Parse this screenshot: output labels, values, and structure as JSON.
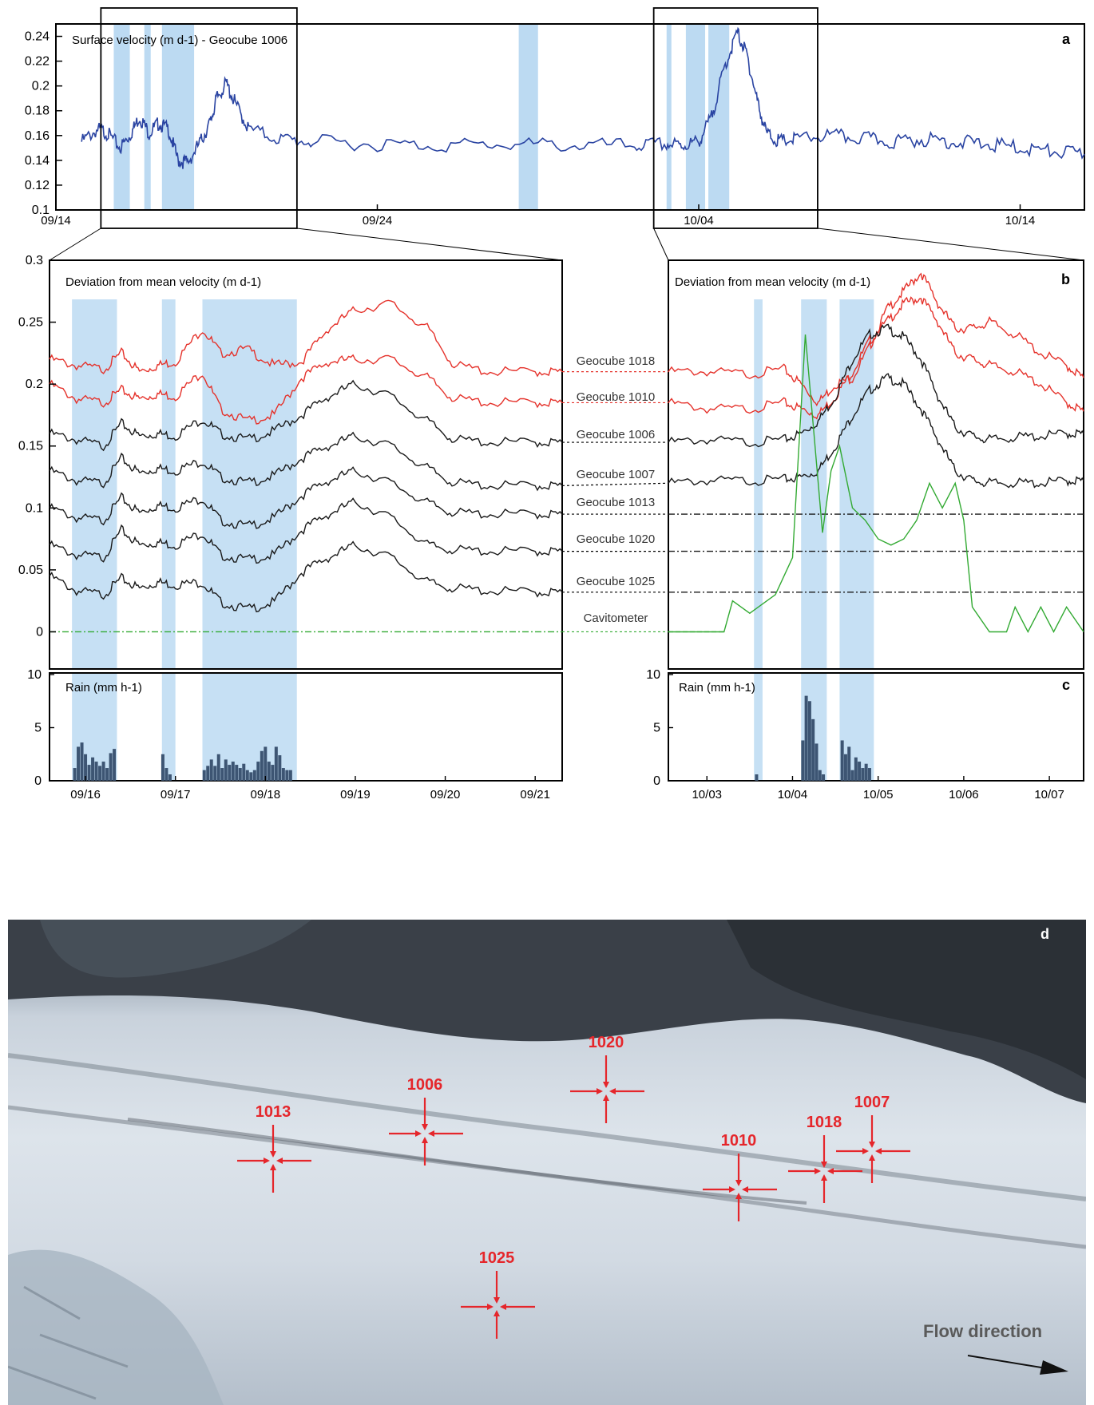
{
  "panel_letters": {
    "a": "a",
    "b": "b",
    "c": "c",
    "d": "d"
  },
  "chart_data": [
    {
      "panel": "a",
      "type": "line",
      "title": "Surface velocity (m d-1) - Geocube 1006",
      "ylim": [
        0.1,
        0.25
      ],
      "yticks": [
        0.1,
        0.12,
        0.14,
        0.16,
        0.18,
        0.2,
        0.22,
        0.24
      ],
      "xlim_day": [
        0,
        32
      ],
      "xticks": [
        {
          "day": 0,
          "label": "09/14"
        },
        {
          "day": 10,
          "label": "09/24"
        },
        {
          "day": 20,
          "label": "10/04"
        },
        {
          "day": 30,
          "label": "10/14"
        }
      ],
      "color": "#2a44a2",
      "shaded_day_ranges": [
        [
          1.8,
          2.3
        ],
        [
          2.75,
          2.95
        ],
        [
          3.3,
          4.3
        ],
        [
          14.4,
          15.0
        ],
        [
          19.0,
          19.15
        ],
        [
          19.6,
          20.2
        ],
        [
          20.3,
          20.95
        ]
      ],
      "zoom_day_ranges": [
        [
          1.4,
          7.5
        ],
        [
          18.6,
          23.7
        ]
      ],
      "series": [
        {
          "x": [
            0.8,
            1.3,
            1.6,
            2.0,
            2.3,
            2.6,
            2.9,
            3.2,
            3.5,
            3.8,
            4.1,
            4.5,
            4.8,
            5.0,
            5.3,
            5.6,
            6.0,
            7.0,
            8.0,
            10.0,
            12.0,
            14.0,
            16.0,
            18.0,
            19.0,
            19.5,
            20.0,
            20.4,
            20.8,
            21.2,
            21.5,
            21.8,
            22.1,
            22.5,
            23.0,
            24.0,
            25.0,
            26.0,
            27.0,
            28.0,
            29.0,
            30.0,
            31.0,
            32.0
          ],
          "y": [
            0.155,
            0.165,
            0.162,
            0.15,
            0.16,
            0.175,
            0.162,
            0.17,
            0.165,
            0.14,
            0.138,
            0.155,
            0.17,
            0.19,
            0.202,
            0.185,
            0.165,
            0.157,
            0.155,
            0.153,
            0.152,
            0.153,
            0.152,
            0.152,
            0.153,
            0.152,
            0.155,
            0.175,
            0.215,
            0.243,
            0.225,
            0.19,
            0.162,
            0.155,
            0.157,
            0.16,
            0.158,
            0.155,
            0.157,
            0.155,
            0.153,
            0.15,
            0.147,
            0.145
          ]
        }
      ]
    },
    {
      "panel": "b-left",
      "type": "line",
      "title": "Deviation from mean velocity (m d-1)",
      "ylim": [
        -0.03,
        0.3
      ],
      "yticks": [
        0,
        0.05,
        0.1,
        0.15,
        0.2,
        0.25,
        0.3
      ],
      "xlim_day": [
        15.6,
        21.3
      ],
      "shaded_day_ranges": [
        [
          15.85,
          16.35
        ],
        [
          16.85,
          17.0
        ],
        [
          17.3,
          18.35
        ]
      ],
      "x": [
        15.6,
        15.9,
        16.2,
        16.4,
        16.6,
        16.8,
        17.0,
        17.3,
        17.5,
        17.8,
        18.1,
        18.4,
        18.7,
        19.0,
        19.4,
        19.8,
        20.1,
        20.5,
        21.0,
        21.3
      ],
      "series": [
        {
          "name": "Geocube 1018",
          "color": "#e5322b",
          "values": [
            0.22,
            0.215,
            0.212,
            0.225,
            0.21,
            0.215,
            0.218,
            0.245,
            0.225,
            0.228,
            0.215,
            0.218,
            0.245,
            0.26,
            0.265,
            0.245,
            0.215,
            0.21,
            0.21,
            0.21
          ]
        },
        {
          "name": "Geocube 1010",
          "color": "#e5322b",
          "values": [
            0.2,
            0.188,
            0.185,
            0.195,
            0.188,
            0.192,
            0.19,
            0.21,
            0.18,
            0.17,
            0.175,
            0.205,
            0.218,
            0.22,
            0.22,
            0.205,
            0.188,
            0.185,
            0.185,
            0.185
          ]
        },
        {
          "name": "Geocube 1006",
          "color": "#1a1a1a",
          "values": [
            0.16,
            0.155,
            0.15,
            0.168,
            0.158,
            0.16,
            0.158,
            0.172,
            0.16,
            0.155,
            0.162,
            0.175,
            0.19,
            0.2,
            0.19,
            0.17,
            0.155,
            0.153,
            0.153,
            0.153
          ]
        },
        {
          "name": "Geocube 1007",
          "color": "#1a1a1a",
          "values": [
            0.13,
            0.122,
            0.12,
            0.14,
            0.128,
            0.132,
            0.13,
            0.138,
            0.125,
            0.12,
            0.126,
            0.14,
            0.15,
            0.158,
            0.15,
            0.132,
            0.12,
            0.118,
            0.118,
            0.118
          ]
        },
        {
          "name": "Geocube 1013",
          "color": "#1a1a1a",
          "values": [
            0.1,
            0.092,
            0.09,
            0.108,
            0.096,
            0.102,
            0.1,
            0.108,
            0.09,
            0.085,
            0.092,
            0.11,
            0.122,
            0.13,
            0.12,
            0.104,
            0.096,
            0.095,
            0.095,
            0.095
          ]
        },
        {
          "name": "Geocube 1020",
          "color": "#1a1a1a",
          "values": [
            0.07,
            0.062,
            0.06,
            0.082,
            0.07,
            0.072,
            0.07,
            0.08,
            0.062,
            0.058,
            0.062,
            0.082,
            0.095,
            0.105,
            0.092,
            0.07,
            0.066,
            0.065,
            0.065,
            0.065
          ]
        },
        {
          "name": "Geocube 1025",
          "color": "#1a1a1a",
          "values": [
            0.045,
            0.033,
            0.03,
            0.043,
            0.035,
            0.04,
            0.038,
            0.04,
            0.024,
            0.018,
            0.024,
            0.048,
            0.06,
            0.07,
            0.06,
            0.04,
            0.035,
            0.033,
            0.032,
            0.032
          ]
        },
        {
          "name": "Cavitometer",
          "color": "#33aa33",
          "dashed": true,
          "values": [
            0,
            0,
            0,
            0,
            0,
            0,
            0,
            0,
            0,
            0,
            0,
            0,
            0,
            0,
            0,
            0,
            0,
            0,
            0,
            0
          ]
        }
      ]
    },
    {
      "panel": "b-right",
      "type": "line",
      "ylim": [
        -0.03,
        0.3
      ],
      "xlim_day": [
        32.55,
        37.4
      ],
      "shaded_day_ranges": [
        [
          33.55,
          33.65
        ],
        [
          34.1,
          34.4
        ],
        [
          34.55,
          34.95
        ]
      ],
      "x": [
        32.55,
        33.0,
        33.5,
        33.9,
        34.1,
        34.3,
        34.5,
        34.7,
        34.9,
        35.1,
        35.3,
        35.5,
        35.7,
        35.9,
        36.1,
        36.3,
        36.6,
        36.9,
        37.2,
        37.4
      ],
      "series": [
        {
          "name": "Geocube 1018",
          "color": "#e5322b",
          "values": [
            0.21,
            0.21,
            0.208,
            0.212,
            0.2,
            0.185,
            0.2,
            0.205,
            0.23,
            0.26,
            0.275,
            0.29,
            0.265,
            0.245,
            0.245,
            0.25,
            0.24,
            0.225,
            0.215,
            0.205
          ]
        },
        {
          "name": "Geocube 1010",
          "color": "#e5322b",
          "values": [
            0.185,
            0.18,
            0.18,
            0.185,
            0.18,
            0.175,
            0.19,
            0.21,
            0.235,
            0.25,
            0.265,
            0.27,
            0.25,
            0.225,
            0.22,
            0.215,
            0.21,
            0.2,
            0.185,
            0.178
          ]
        },
        {
          "name": "Geocube 1006",
          "color": "#1a1a1a",
          "values": [
            0.153,
            0.155,
            0.153,
            0.155,
            0.16,
            0.17,
            0.19,
            0.22,
            0.24,
            0.245,
            0.238,
            0.22,
            0.19,
            0.165,
            0.158,
            0.155,
            0.157,
            0.158,
            0.16,
            0.16
          ]
        },
        {
          "name": "Geocube 1007",
          "color": "#1a1a1a",
          "values": [
            0.12,
            0.122,
            0.122,
            0.123,
            0.125,
            0.13,
            0.15,
            0.175,
            0.195,
            0.205,
            0.2,
            0.18,
            0.155,
            0.13,
            0.122,
            0.12,
            0.12,
            0.12,
            0.122,
            0.122
          ]
        },
        {
          "name": "Geocube 1013",
          "color": "#1a1a1a",
          "dashed": true,
          "values": [
            0.095,
            0.095,
            0.095,
            0.095,
            0.095,
            0.095,
            0.095,
            0.095,
            0.095,
            0.095,
            0.095,
            0.095,
            0.095,
            0.095,
            0.095,
            0.095,
            0.095,
            0.095,
            0.095,
            0.095
          ]
        },
        {
          "name": "Geocube 1020",
          "color": "#1a1a1a",
          "dashed": true,
          "values": [
            0.065,
            0.065,
            0.065,
            0.065,
            0.065,
            0.065,
            0.065,
            0.065,
            0.065,
            0.065,
            0.065,
            0.065,
            0.065,
            0.065,
            0.065,
            0.065,
            0.065,
            0.065,
            0.065,
            0.065
          ]
        },
        {
          "name": "Geocube 1025",
          "color": "#1a1a1a",
          "dashed": true,
          "values": [
            0.032,
            0.032,
            0.032,
            0.032,
            0.032,
            0.032,
            0.032,
            0.032,
            0.032,
            0.032,
            0.032,
            0.032,
            0.032,
            0.032,
            0.032,
            0.032,
            0.032,
            0.032,
            0.032,
            0.032
          ]
        }
      ],
      "cavitometer": {
        "name": "Cavitometer",
        "color": "#33aa33",
        "x": [
          32.55,
          33.2,
          33.3,
          33.5,
          33.8,
          34.0,
          34.15,
          34.25,
          34.35,
          34.45,
          34.55,
          34.7,
          34.85,
          35.0,
          35.15,
          35.3,
          35.45,
          35.6,
          35.75,
          35.9,
          36.0,
          36.1,
          36.3,
          36.5,
          36.6,
          36.75,
          36.9,
          37.05,
          37.2,
          37.4
        ],
        "y": [
          0,
          0,
          0.025,
          0.015,
          0.03,
          0.06,
          0.24,
          0.16,
          0.08,
          0.13,
          0.15,
          0.1,
          0.09,
          0.075,
          0.07,
          0.075,
          0.09,
          0.12,
          0.1,
          0.12,
          0.09,
          0.02,
          0.0,
          0.0,
          0.02,
          0.0,
          0.02,
          0.0,
          0.02,
          0.0
        ]
      }
    },
    {
      "panel": "c-left",
      "type": "bar",
      "title": "Rain (mm h-1)",
      "ylim": [
        0,
        10
      ],
      "yticks": [
        0,
        5,
        10
      ],
      "xlim_day": [
        15.6,
        21.3
      ],
      "xticks": [
        {
          "day": 16,
          "label": "09/16"
        },
        {
          "day": 17,
          "label": "09/17"
        },
        {
          "day": 18,
          "label": "09/18"
        },
        {
          "day": 19,
          "label": "09/19"
        },
        {
          "day": 20,
          "label": "09/20"
        },
        {
          "day": 21,
          "label": "09/21"
        }
      ],
      "color": "#3d5573",
      "shaded_day_ranges": [
        [
          15.85,
          16.35
        ],
        [
          16.85,
          17.0
        ],
        [
          17.3,
          18.35
        ]
      ],
      "bars": {
        "x": [
          15.88,
          15.92,
          15.96,
          16.0,
          16.04,
          16.08,
          16.12,
          16.16,
          16.2,
          16.24,
          16.28,
          16.32,
          16.86,
          16.9,
          16.94,
          17.32,
          17.36,
          17.4,
          17.44,
          17.48,
          17.52,
          17.56,
          17.6,
          17.64,
          17.68,
          17.72,
          17.76,
          17.8,
          17.84,
          17.88,
          17.92,
          17.96,
          18.0,
          18.04,
          18.08,
          18.12,
          18.16,
          18.2,
          18.24,
          18.28
        ],
        "values": [
          1.2,
          3.2,
          3.6,
          2.5,
          1.5,
          2.2,
          1.8,
          1.4,
          1.8,
          1.2,
          2.6,
          3.0,
          2.5,
          1.2,
          0.6,
          1.0,
          1.4,
          2.0,
          1.4,
          2.5,
          1.2,
          2.0,
          1.5,
          1.8,
          1.5,
          1.2,
          1.6,
          1.0,
          0.8,
          1.0,
          1.8,
          2.8,
          3.2,
          1.8,
          1.5,
          3.2,
          2.4,
          1.2,
          1.0,
          1.0
        ]
      }
    },
    {
      "panel": "c-right",
      "type": "bar",
      "ylim": [
        0,
        10
      ],
      "xlim_day": [
        32.55,
        37.4
      ],
      "xticks": [
        {
          "day": 33,
          "label": "10/03"
        },
        {
          "day": 34,
          "label": "10/04"
        },
        {
          "day": 35,
          "label": "10/05"
        },
        {
          "day": 36,
          "label": "10/06"
        },
        {
          "day": 37,
          "label": "10/07"
        }
      ],
      "color": "#3d5573",
      "shaded_day_ranges": [
        [
          33.55,
          33.65
        ],
        [
          34.1,
          34.4
        ],
        [
          34.55,
          34.95
        ]
      ],
      "bars": {
        "x": [
          33.58,
          34.12,
          34.16,
          34.2,
          34.24,
          34.28,
          34.32,
          34.36,
          34.58,
          34.62,
          34.66,
          34.7,
          34.74,
          34.78,
          34.82,
          34.86,
          34.9
        ],
        "values": [
          0.6,
          3.8,
          8.0,
          7.5,
          5.8,
          3.5,
          1.0,
          0.6,
          3.8,
          2.5,
          3.2,
          1.0,
          2.2,
          1.8,
          1.2,
          1.6,
          1.2
        ]
      }
    }
  ],
  "photo": {
    "labels": [
      "1020",
      "1006",
      "1013",
      "1007",
      "1018",
      "1010",
      "1025"
    ],
    "flow_label": "Flow direction"
  }
}
